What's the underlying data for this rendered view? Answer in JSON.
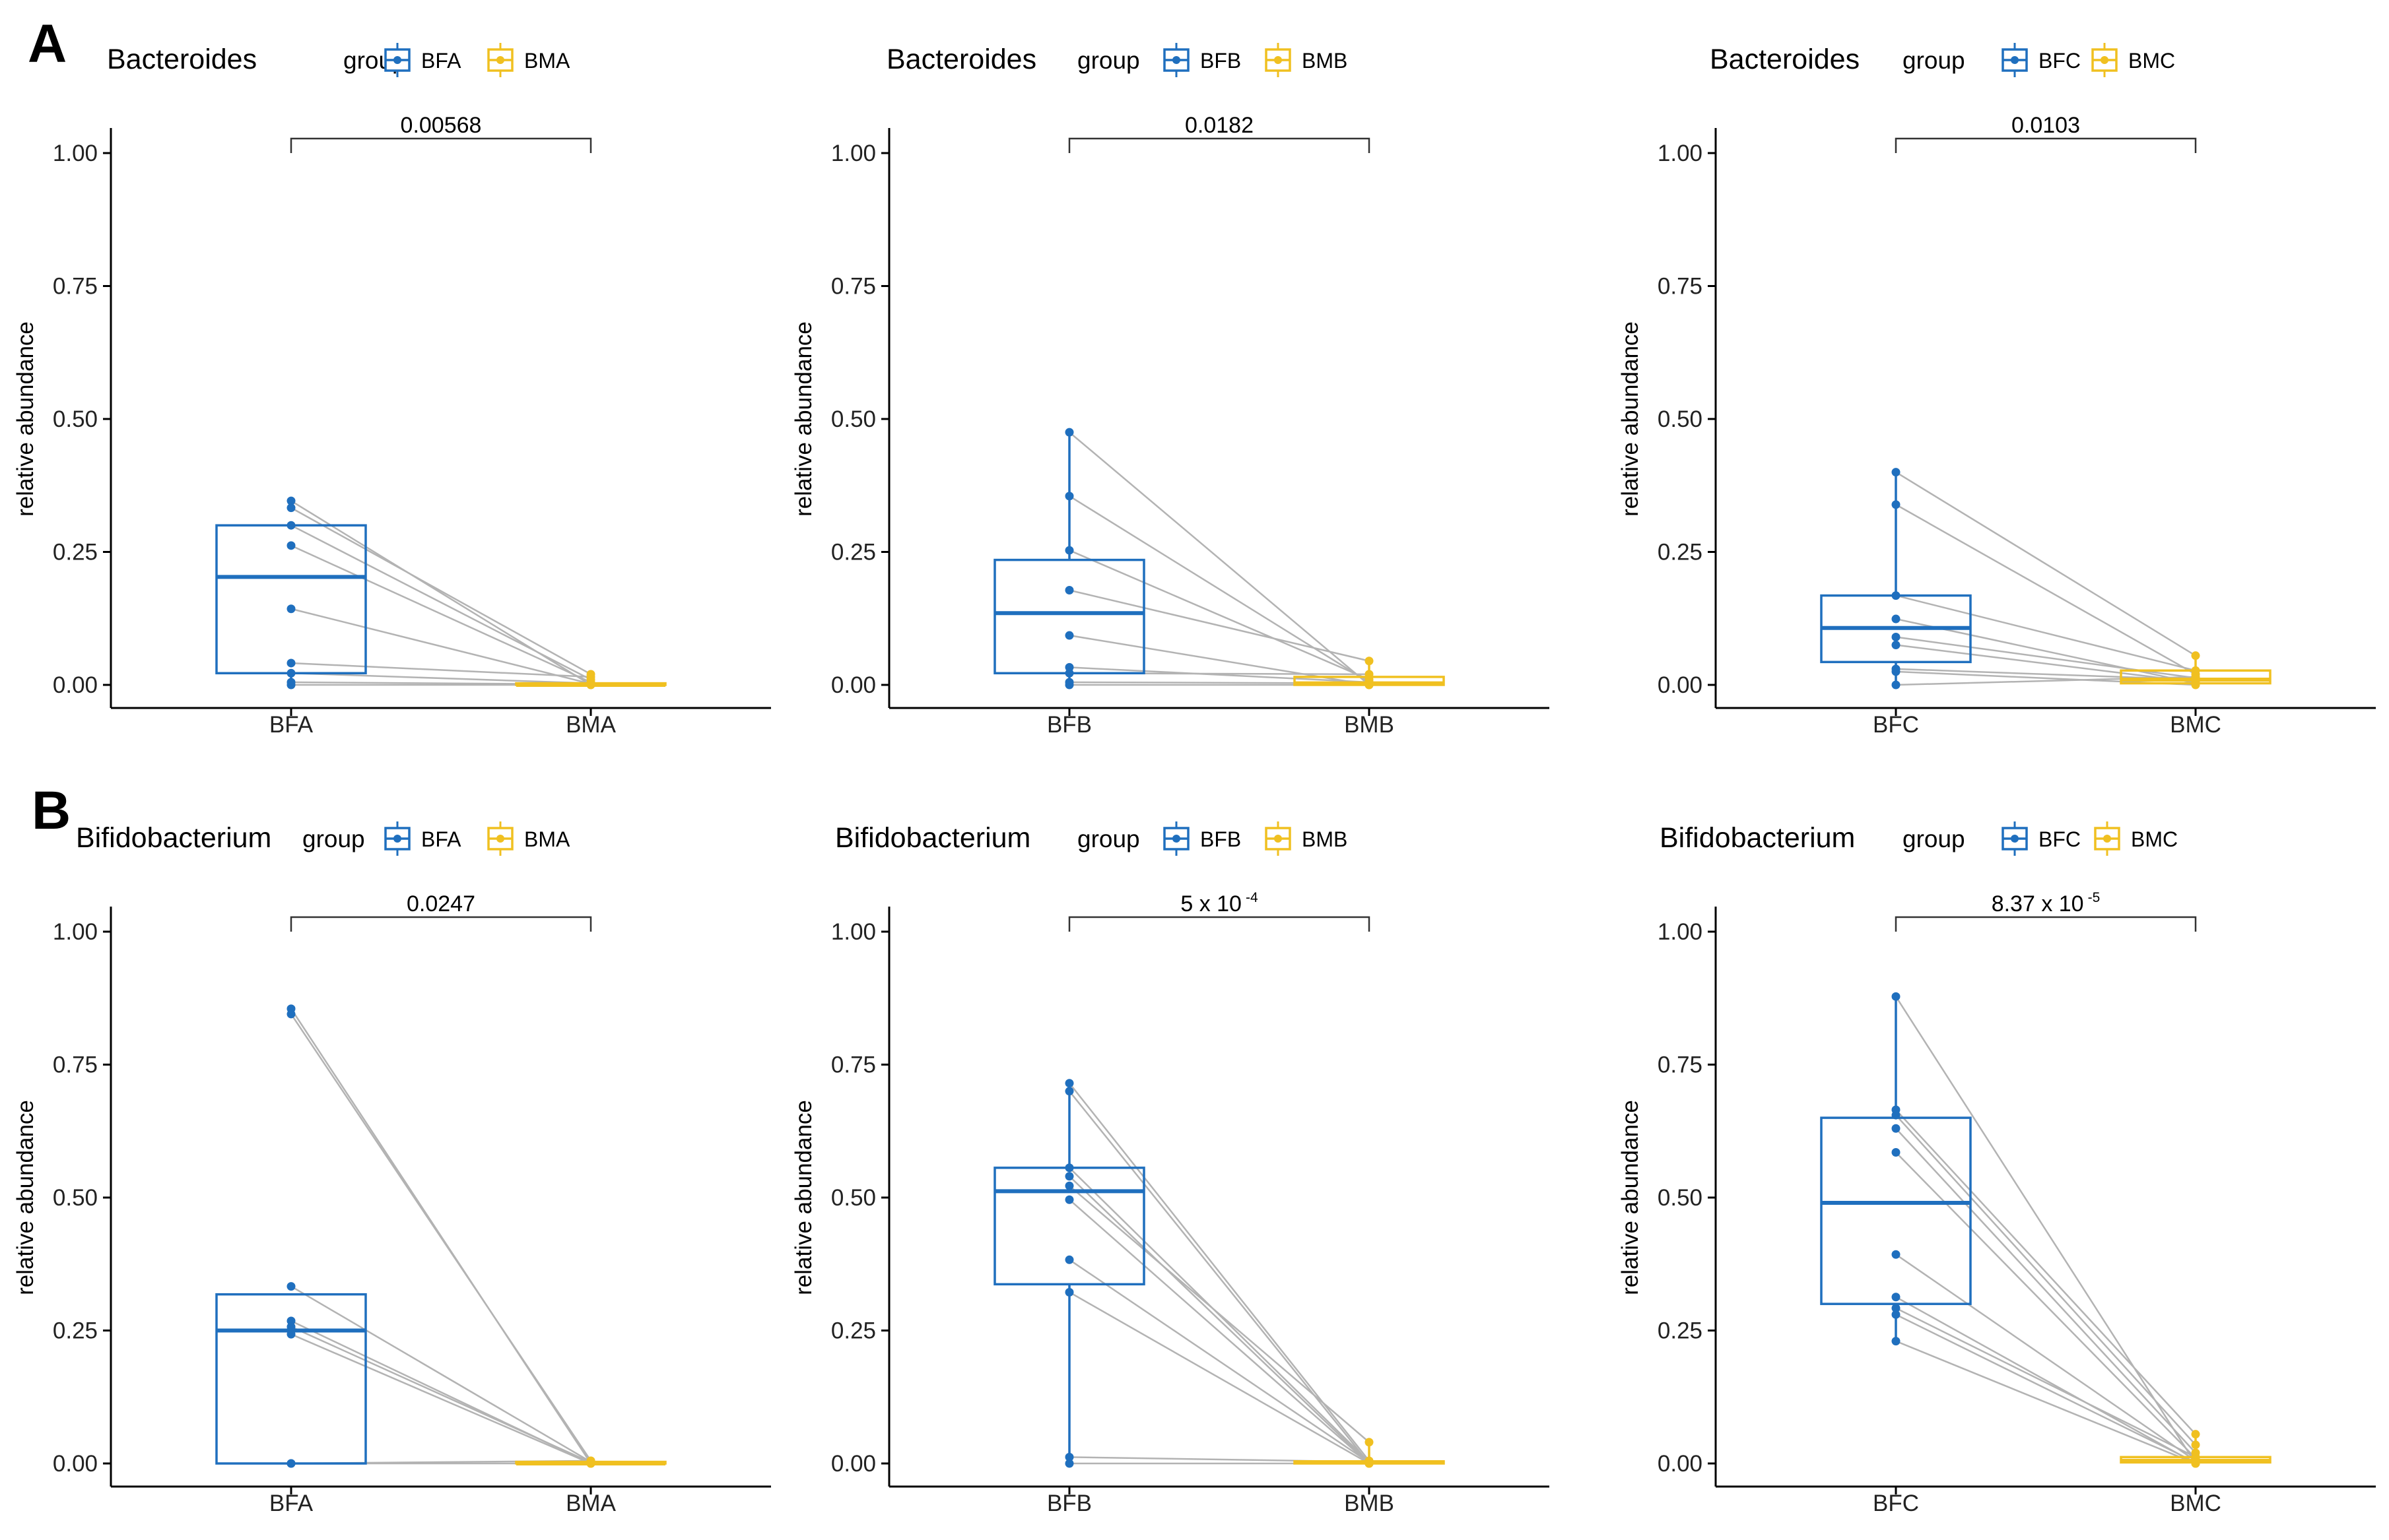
{
  "panel_letters": [
    "A",
    "B"
  ],
  "legend_title": "group",
  "colors": {
    "blue": "#1f6fbe",
    "yellow": "#f0c020",
    "line": "#b3b3b3",
    "axis": "#000000"
  },
  "chart_data": [
    {
      "type": "box-paired",
      "panel": "A",
      "title": "Bacteroides",
      "categories": [
        "BFA",
        "BMA"
      ],
      "ylabel": "relative abundance",
      "ylim": [
        0,
        1
      ],
      "yticks": [
        "0.00",
        "0.25",
        "0.50",
        "0.75",
        "1.00"
      ],
      "pvalue": {
        "base": "0.00568",
        "exp": ""
      },
      "box": [
        {
          "q1": 0.022,
          "median": 0.203,
          "q3": 0.3,
          "lo": 0.0,
          "hi": 0.3
        },
        {
          "q1": 0.0,
          "median": 0.0,
          "q3": 0.003,
          "lo": 0.0,
          "hi": 0.003
        }
      ],
      "pairs": [
        [
          0.346,
          0.0
        ],
        [
          0.333,
          0.02
        ],
        [
          0.3,
          0.01
        ],
        [
          0.262,
          0.005
        ],
        [
          0.143,
          0.002
        ],
        [
          0.041,
          0.015
        ],
        [
          0.022,
          0.003
        ],
        [
          0.005,
          0.001
        ],
        [
          0.0,
          0.0
        ]
      ]
    },
    {
      "type": "box-paired",
      "panel": "A",
      "title": "Bacteroides",
      "categories": [
        "BFB",
        "BMB"
      ],
      "ylabel": "relative abundance",
      "ylim": [
        0,
        1
      ],
      "yticks": [
        "0.00",
        "0.25",
        "0.50",
        "0.75",
        "1.00"
      ],
      "pvalue": {
        "base": "0.0182",
        "exp": ""
      },
      "box": [
        {
          "q1": 0.022,
          "median": 0.135,
          "q3": 0.235,
          "lo": 0.0,
          "hi": 0.475
        },
        {
          "q1": 0.0,
          "median": 0.003,
          "q3": 0.015,
          "lo": 0.0,
          "hi": 0.045
        }
      ],
      "pairs": [
        [
          0.475,
          0.0
        ],
        [
          0.355,
          0.005
        ],
        [
          0.253,
          0.01
        ],
        [
          0.178,
          0.045
        ],
        [
          0.093,
          0.0
        ],
        [
          0.033,
          0.005
        ],
        [
          0.022,
          0.02
        ],
        [
          0.005,
          0.003
        ],
        [
          0.0,
          0.0
        ]
      ]
    },
    {
      "type": "box-paired",
      "panel": "A",
      "title": "Bacteroides",
      "categories": [
        "BFC",
        "BMC"
      ],
      "ylabel": "relative abundance",
      "ylim": [
        0,
        1
      ],
      "yticks": [
        "0.00",
        "0.25",
        "0.50",
        "0.75",
        "1.00"
      ],
      "pvalue": {
        "base": "0.0103",
        "exp": ""
      },
      "box": [
        {
          "q1": 0.043,
          "median": 0.107,
          "q3": 0.168,
          "lo": 0.0,
          "hi": 0.4
        },
        {
          "q1": 0.003,
          "median": 0.01,
          "q3": 0.027,
          "lo": 0.0,
          "hi": 0.055
        }
      ],
      "pairs": [
        [
          0.4,
          0.055
        ],
        [
          0.339,
          0.02
        ],
        [
          0.168,
          0.027
        ],
        [
          0.124,
          0.003
        ],
        [
          0.09,
          0.013
        ],
        [
          0.075,
          0.005
        ],
        [
          0.03,
          0.01
        ],
        [
          0.025,
          0.0
        ],
        [
          0.0,
          0.015
        ]
      ]
    },
    {
      "type": "box-paired",
      "panel": "B",
      "title": "Bifidobacterium",
      "categories": [
        "BFA",
        "BMA"
      ],
      "ylabel": "relative abundance",
      "ylim": [
        0,
        1
      ],
      "yticks": [
        "0.00",
        "0.25",
        "0.50",
        "0.75",
        "1.00"
      ],
      "pvalue": {
        "base": "0.0247",
        "exp": ""
      },
      "box": [
        {
          "q1": 0.0,
          "median": 0.25,
          "q3": 0.318,
          "lo": 0.0,
          "hi": 0.318
        },
        {
          "q1": 0.0,
          "median": 0.0,
          "q3": 0.003,
          "lo": 0.0,
          "hi": 0.003
        }
      ],
      "pairs": [
        [
          0.855,
          0.0
        ],
        [
          0.845,
          0.005
        ],
        [
          0.333,
          0.003
        ],
        [
          0.268,
          0.0
        ],
        [
          0.257,
          0.002
        ],
        [
          0.243,
          0.0
        ],
        [
          0.0,
          0.005
        ],
        [
          0.0,
          0.0
        ]
      ]
    },
    {
      "type": "box-paired",
      "panel": "B",
      "title": "Bifidobacterium",
      "categories": [
        "BFB",
        "BMB"
      ],
      "ylabel": "relative abundance",
      "ylim": [
        0,
        1
      ],
      "yticks": [
        "0.00",
        "0.25",
        "0.50",
        "0.75",
        "1.00"
      ],
      "pvalue": {
        "base": "5 x 10",
        "exp": "-4"
      },
      "box": [
        {
          "q1": 0.337,
          "median": 0.512,
          "q3": 0.556,
          "lo": 0.0,
          "hi": 0.715
        },
        {
          "q1": 0.0,
          "median": 0.002,
          "q3": 0.004,
          "lo": 0.0,
          "hi": 0.04
        }
      ],
      "pairs": [
        [
          0.715,
          0.005
        ],
        [
          0.7,
          0.0
        ],
        [
          0.556,
          0.003
        ],
        [
          0.54,
          0.0
        ],
        [
          0.522,
          0.04
        ],
        [
          0.496,
          0.0
        ],
        [
          0.383,
          0.002
        ],
        [
          0.322,
          0.0
        ],
        [
          0.012,
          0.003
        ],
        [
          0.0,
          0.0
        ]
      ]
    },
    {
      "type": "box-paired",
      "panel": "B",
      "title": "Bifidobacterium",
      "categories": [
        "BFC",
        "BMC"
      ],
      "ylabel": "relative abundance",
      "ylim": [
        0,
        1
      ],
      "yticks": [
        "0.00",
        "0.25",
        "0.50",
        "0.75",
        "1.00"
      ],
      "pvalue": {
        "base": "8.37 x 10",
        "exp": "-5"
      },
      "box": [
        {
          "q1": 0.3,
          "median": 0.49,
          "q3": 0.65,
          "lo": 0.23,
          "hi": 0.878
        },
        {
          "q1": 0.002,
          "median": 0.005,
          "q3": 0.012,
          "lo": 0.0,
          "hi": 0.055
        }
      ],
      "pairs": [
        [
          0.878,
          0.0
        ],
        [
          0.665,
          0.055
        ],
        [
          0.655,
          0.035
        ],
        [
          0.63,
          0.02
        ],
        [
          0.585,
          0.01
        ],
        [
          0.393,
          0.005
        ],
        [
          0.313,
          0.0
        ],
        [
          0.292,
          0.012
        ],
        [
          0.28,
          0.002
        ],
        [
          0.23,
          0.0
        ]
      ]
    }
  ]
}
